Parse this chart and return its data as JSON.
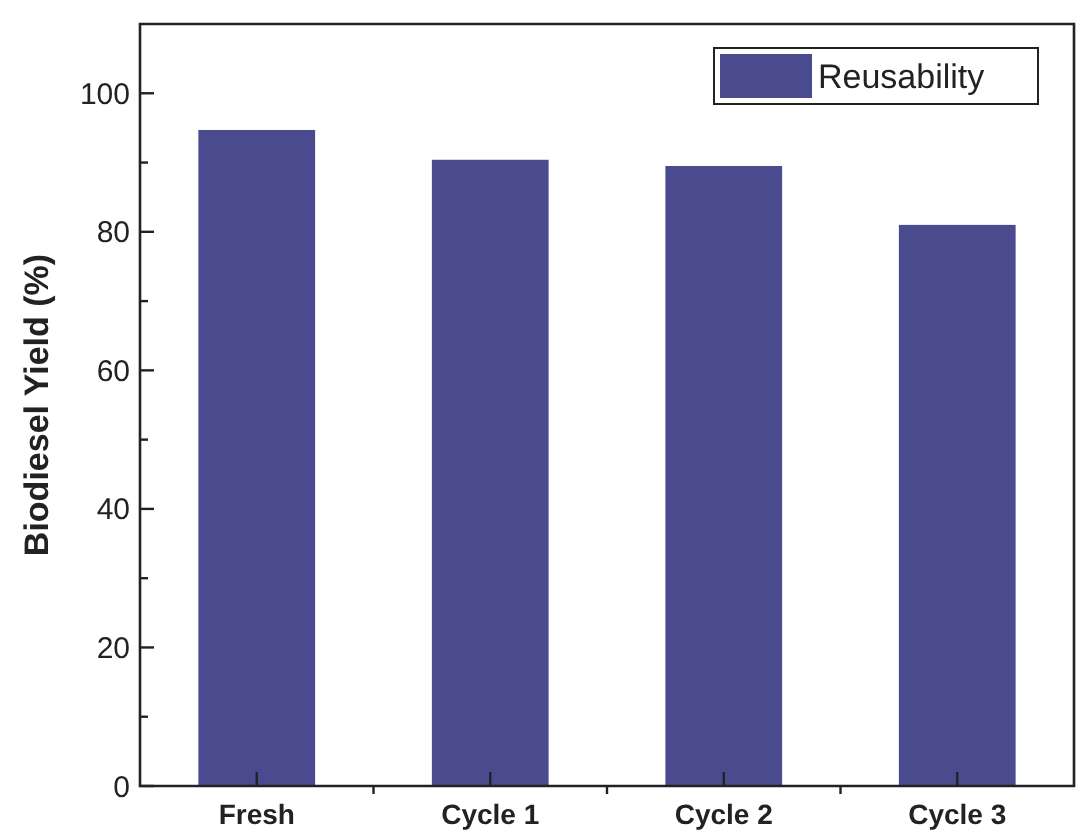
{
  "chart_data": {
    "type": "bar",
    "ylabel": "Biodiesel Yield (%)",
    "categories": [
      "Fresh",
      "Cycle 1",
      "Cycle 2",
      "Cycle 3"
    ],
    "series": [
      {
        "name": "Reusability",
        "color": "#4a4a8f",
        "values": [
          94.7,
          90.4,
          89.5,
          81.0
        ]
      }
    ],
    "ylim": [
      0,
      110
    ],
    "yticks": [
      0,
      {
        "value": 10,
        "label": null
      },
      20,
      {
        "value": 30,
        "label": null
      },
      40,
      {
        "value": 50,
        "label": null
      },
      60,
      {
        "value": 70,
        "label": null
      },
      80,
      {
        "value": 90,
        "label": null
      },
      100
    ],
    "legend": "top right",
    "grid": false
  }
}
